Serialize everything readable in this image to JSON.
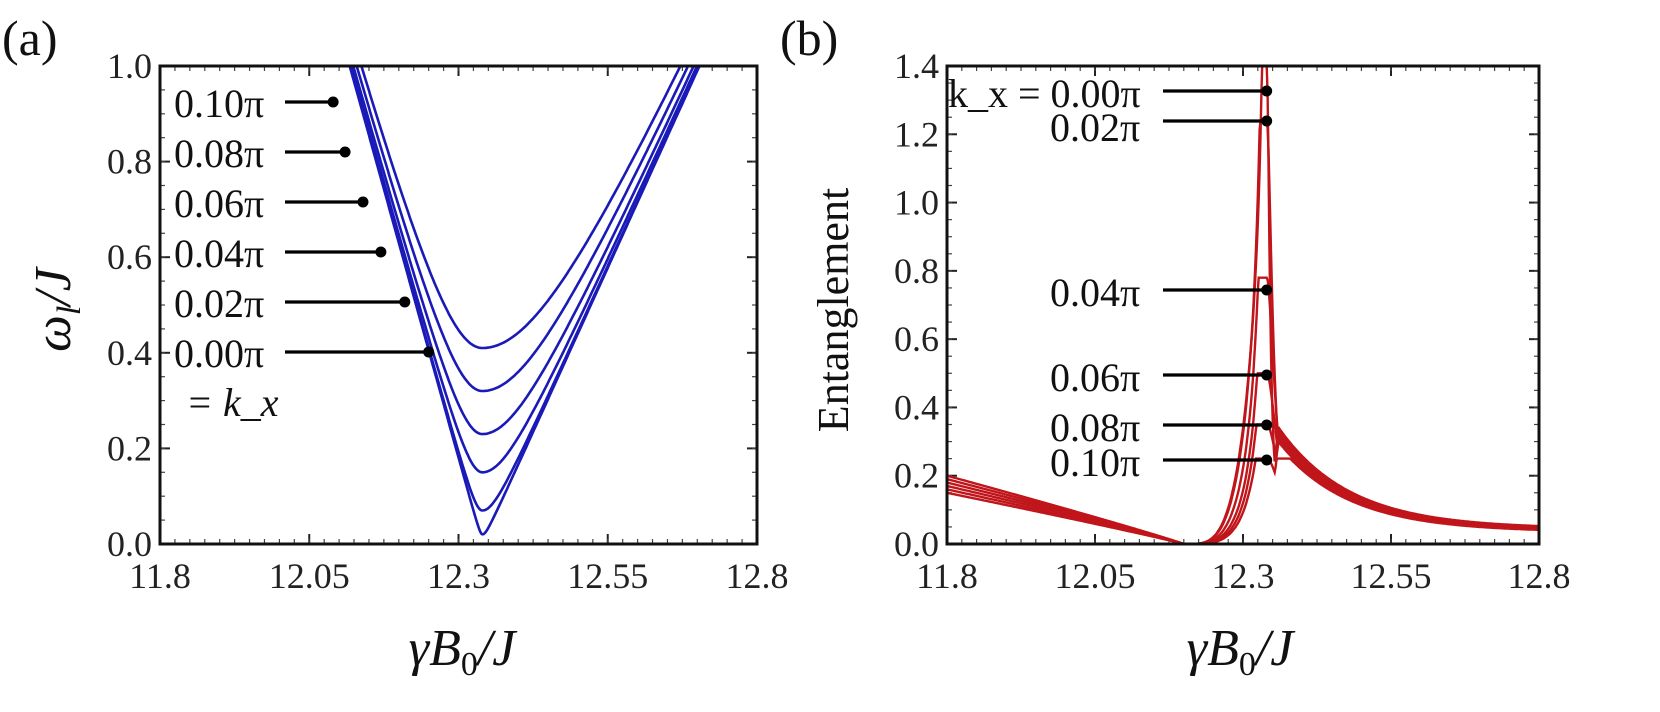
{
  "chart_data": [
    {
      "type": "line",
      "panel_label": "(a)",
      "xlabel": "γB₀/J",
      "ylabel": "ω_l/J",
      "xlim": [
        11.8,
        12.8
      ],
      "ylim": [
        0.0,
        1.0
      ],
      "xticks": [
        11.8,
        12.05,
        12.3,
        12.55,
        12.8
      ],
      "xtick_labels": [
        "11.8",
        "12.05",
        "12.3",
        "12.55",
        "12.8"
      ],
      "yticks": [
        0.0,
        0.2,
        0.4,
        0.6,
        0.8,
        1.0
      ],
      "ytick_labels": [
        "0.0",
        "0.2",
        "0.4",
        "0.6",
        "0.8",
        "1.0"
      ],
      "color": "#1a1ab8",
      "x_c": 12.34,
      "series": [
        {
          "name": "0.00π",
          "k": 0.0,
          "min": 0.02,
          "left_slope": 4.5,
          "right_slope": 2.75,
          "marker": [
            12.25,
            0.4
          ]
        },
        {
          "name": "0.02π",
          "k": 0.02,
          "min": 0.07,
          "left_slope": 4.5,
          "right_slope": 2.75,
          "marker": [
            12.21,
            0.5
          ]
        },
        {
          "name": "0.04π",
          "k": 0.04,
          "min": 0.15,
          "left_slope": 4.5,
          "right_slope": 2.75,
          "marker": [
            12.17,
            0.61
          ]
        },
        {
          "name": "0.06π",
          "k": 0.06,
          "min": 0.23,
          "left_slope": 4.5,
          "right_slope": 2.75,
          "marker": [
            12.14,
            0.72
          ]
        },
        {
          "name": "0.08π",
          "k": 0.08,
          "min": 0.32,
          "left_slope": 4.5,
          "right_slope": 2.75,
          "marker": [
            12.11,
            0.82
          ]
        },
        {
          "name": "0.10π",
          "k": 0.1,
          "min": 0.41,
          "left_slope": 4.5,
          "right_slope": 2.75,
          "marker": [
            12.09,
            0.93
          ]
        }
      ],
      "annotations": [
        "0.10π",
        "0.08π",
        "0.06π",
        "0.04π",
        "0.02π",
        "0.00π"
      ],
      "extra_label": "= k_x"
    },
    {
      "type": "line",
      "panel_label": "(b)",
      "xlabel": "γB₀/J",
      "ylabel": "Entanglement",
      "xlim": [
        11.8,
        12.8
      ],
      "ylim": [
        0.0,
        1.4
      ],
      "xticks": [
        11.8,
        12.05,
        12.3,
        12.55,
        12.8
      ],
      "xtick_labels": [
        "11.8",
        "12.05",
        "12.3",
        "12.55",
        "12.8"
      ],
      "yticks": [
        0.0,
        0.2,
        0.4,
        0.6,
        0.8,
        1.0,
        1.2,
        1.4
      ],
      "ytick_labels": [
        "0.0",
        "0.2",
        "0.4",
        "0.6",
        "0.8",
        "1.0",
        "1.2",
        "1.4"
      ],
      "color": "#c0151a",
      "x_zero": 12.2,
      "x_peak": 12.34,
      "series": [
        {
          "name": "0.00π",
          "k": 0.0,
          "peak": 1.4,
          "left_start": 0.2,
          "right_end": 0.045,
          "marker": [
            12.34,
            1.32
          ]
        },
        {
          "name": "0.02π",
          "k": 0.02,
          "peak": 1.24,
          "left_start": 0.19,
          "right_end": 0.043,
          "marker": [
            12.34,
            1.24
          ]
        },
        {
          "name": "0.04π",
          "k": 0.04,
          "peak": 0.78,
          "left_start": 0.18,
          "right_end": 0.041,
          "marker": [
            12.34,
            0.74
          ]
        },
        {
          "name": "0.06π",
          "k": 0.06,
          "peak": 0.5,
          "left_start": 0.17,
          "right_end": 0.039,
          "marker": [
            12.34,
            0.5
          ]
        },
        {
          "name": "0.08π",
          "k": 0.08,
          "peak": 0.35,
          "left_start": 0.16,
          "right_end": 0.037,
          "marker": [
            12.34,
            0.35
          ]
        },
        {
          "name": "0.10π",
          "k": 0.1,
          "peak": 0.25,
          "left_start": 0.15,
          "right_end": 0.035,
          "marker": [
            12.34,
            0.245
          ]
        }
      ],
      "annotations": [
        "k_x = 0.00π",
        "0.02π",
        "0.04π",
        "0.06π",
        "0.08π",
        "0.10π"
      ]
    }
  ]
}
